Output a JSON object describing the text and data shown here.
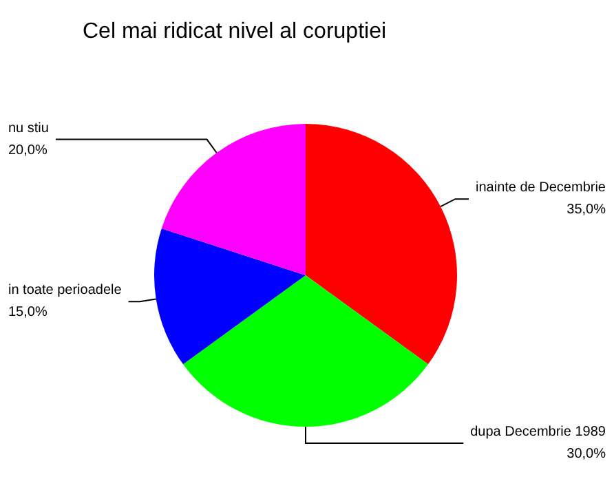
{
  "chart_data": {
    "type": "pie",
    "title": "Cel mai ridicat nivel al coruptiei",
    "categories": [
      "inainte de Decembrie",
      "dupa Decembrie 1989",
      "in toate perioadele",
      "nu stiu"
    ],
    "values": [
      35,
      30,
      15,
      20
    ],
    "value_labels": [
      "35,0%",
      "30,0%",
      "15,0%",
      "20,0%"
    ],
    "colors": [
      "#ff0000",
      "#00ff00",
      "#0000ff",
      "#ff00ff"
    ],
    "legend": false
  }
}
